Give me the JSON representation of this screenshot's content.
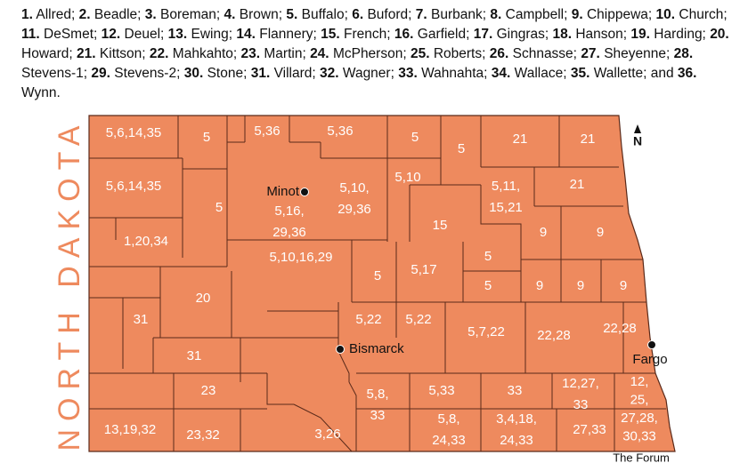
{
  "legend": [
    {
      "number": "1.",
      "name": "Allred;"
    },
    {
      "number": "2.",
      "name": "Beadle;"
    },
    {
      "number": "3.",
      "name": "Boreman;"
    },
    {
      "number": "4.",
      "name": "Brown;"
    },
    {
      "number": "5.",
      "name": "Buffalo;"
    },
    {
      "number": "6.",
      "name": "Buford;"
    },
    {
      "number": "7.",
      "name": "Burbank;"
    },
    {
      "number": "8.",
      "name": "Campbell;"
    },
    {
      "number": "9.",
      "name": "Chippewa;"
    },
    {
      "number": "10.",
      "name": "Church;"
    },
    {
      "number": "11.",
      "name": "DeSmet;"
    },
    {
      "number": "12.",
      "name": "Deuel;"
    },
    {
      "number": "13.",
      "name": "Ewing;"
    },
    {
      "number": "14.",
      "name": "Flannery;"
    },
    {
      "number": "15.",
      "name": "French;"
    },
    {
      "number": "16.",
      "name": "Garfield;"
    },
    {
      "number": "17.",
      "name": "Gingras;"
    },
    {
      "number": "18.",
      "name": "Hanson;"
    },
    {
      "number": "19.",
      "name": "Harding;"
    },
    {
      "number": "20.",
      "name": "Howard;"
    },
    {
      "number": "21.",
      "name": "Kittson;"
    },
    {
      "number": "22.",
      "name": "Mahkahto;"
    },
    {
      "number": "23.",
      "name": "Martin;"
    },
    {
      "number": "24.",
      "name": "McPherson;"
    },
    {
      "number": "25.",
      "name": "Roberts;"
    },
    {
      "number": "26.",
      "name": "Schnasse;"
    },
    {
      "number": "27.",
      "name": "Sheyenne;"
    },
    {
      "number": "28.",
      "name": "Stevens-1;"
    },
    {
      "number": "29.",
      "name": "Stevens-2;"
    },
    {
      "number": "30.",
      "name": "Stone;"
    },
    {
      "number": "31.",
      "name": "Villard;"
    },
    {
      "number": "32.",
      "name": "Wagner;"
    },
    {
      "number": "33.",
      "name": "Wahnahta;"
    },
    {
      "number": "34.",
      "name": "Wallace;"
    },
    {
      "number": "35.",
      "name": "Wallette; and"
    },
    {
      "number": "36.",
      "name": "Wynn."
    }
  ],
  "state_label": "NORTH DAKOTA",
  "north": "N",
  "regions": [
    [
      "5,6,14,35"
    ],
    [
      "5"
    ],
    [
      "5,36"
    ],
    [
      "5,36"
    ],
    [
      "5"
    ],
    [
      "5"
    ],
    [
      "21"
    ],
    [
      "21"
    ],
    [
      "5,6,14,35"
    ],
    [
      "5"
    ],
    [
      "5,10,",
      "29,36"
    ],
    [
      "5,10"
    ],
    [
      "5,16,",
      "29,36"
    ],
    [
      "5,11,",
      "15,21"
    ],
    [
      "21"
    ],
    [
      "15"
    ],
    [
      "9"
    ],
    [
      "9"
    ],
    [
      "1,20,34"
    ],
    [
      "5,10,16,29"
    ],
    [
      "5"
    ],
    [
      "5,17"
    ],
    [
      "5"
    ],
    [
      "5"
    ],
    [
      "9"
    ],
    [
      "9"
    ],
    [
      "9"
    ],
    [
      "20"
    ],
    [
      "31"
    ],
    [
      "5,22"
    ],
    [
      "5,22"
    ],
    [
      "5,7,22"
    ],
    [
      "22,28"
    ],
    [
      "22,28"
    ],
    [
      "31"
    ],
    [
      "23"
    ],
    [
      "5,8,",
      "33"
    ],
    [
      "5,33"
    ],
    [
      "33"
    ],
    [
      "12,27,",
      "33"
    ],
    [
      "12,",
      "25,",
      "27,28,",
      "30,33"
    ],
    [
      "13,19,32"
    ],
    [
      "23,32"
    ],
    [
      "5,8,",
      "24,33"
    ],
    [
      "3,4,18,",
      "24,33"
    ],
    [
      "27,33"
    ],
    [
      "3,26"
    ]
  ],
  "cities": [
    "Minot",
    "Bismarck",
    "Fargo"
  ],
  "credit": "The Forum"
}
